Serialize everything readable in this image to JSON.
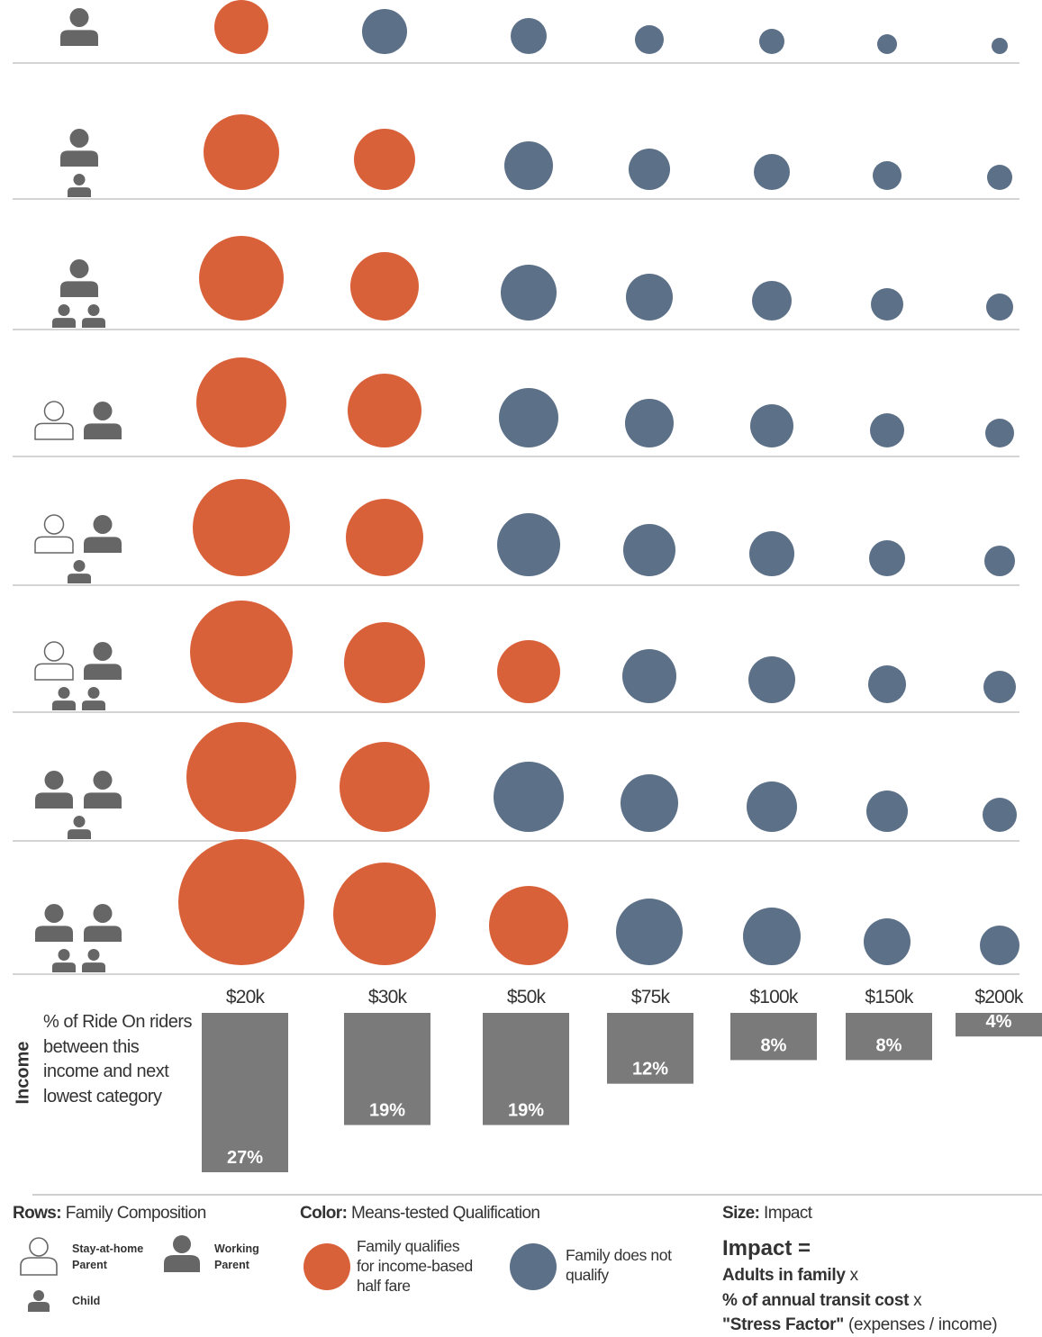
{
  "chart_data": {
    "type": "bubble-matrix",
    "columns": [
      "$20k",
      "$30k",
      "$50k",
      "$75k",
      "$100k",
      "$150k",
      "$200k"
    ],
    "rows": [
      {
        "composition": {
          "stay_at_home": 0,
          "working": 1,
          "children": 0
        },
        "impact": [
          30,
          25,
          20,
          16,
          14,
          11,
          9
        ],
        "qualifies": [
          true,
          false,
          false,
          false,
          false,
          false,
          false
        ]
      },
      {
        "composition": {
          "stay_at_home": 0,
          "working": 1,
          "children": 1
        },
        "impact": [
          42,
          34,
          27,
          23,
          20,
          16,
          14
        ],
        "qualifies": [
          true,
          true,
          false,
          false,
          false,
          false,
          false
        ]
      },
      {
        "composition": {
          "stay_at_home": 0,
          "working": 1,
          "children": 2
        },
        "impact": [
          47,
          38,
          31,
          26,
          22,
          18,
          15
        ],
        "qualifies": [
          true,
          true,
          false,
          false,
          false,
          false,
          false
        ]
      },
      {
        "composition": {
          "stay_at_home": 1,
          "working": 1,
          "children": 0
        },
        "impact": [
          50,
          41,
          33,
          27,
          24,
          19,
          16
        ],
        "qualifies": [
          true,
          true,
          false,
          false,
          false,
          false,
          false
        ]
      },
      {
        "composition": {
          "stay_at_home": 1,
          "working": 1,
          "children": 1
        },
        "impact": [
          54,
          43,
          35,
          29,
          25,
          20,
          17
        ],
        "qualifies": [
          true,
          true,
          false,
          false,
          false,
          false,
          false
        ]
      },
      {
        "composition": {
          "stay_at_home": 1,
          "working": 1,
          "children": 2
        },
        "impact": [
          57,
          45,
          35,
          30,
          26,
          21,
          18
        ],
        "qualifies": [
          true,
          true,
          true,
          false,
          false,
          false,
          false
        ]
      },
      {
        "composition": {
          "stay_at_home": 0,
          "working": 2,
          "children": 1
        },
        "impact": [
          61,
          50,
          39,
          32,
          28,
          23,
          19
        ],
        "qualifies": [
          true,
          true,
          false,
          false,
          false,
          false,
          false
        ]
      },
      {
        "composition": {
          "stay_at_home": 0,
          "working": 2,
          "children": 2
        },
        "impact": [
          70,
          57,
          44,
          37,
          32,
          26,
          22
        ],
        "qualifies": [
          true,
          true,
          true,
          false,
          false,
          false,
          false
        ]
      }
    ],
    "rider_share": {
      "values": [
        27,
        19,
        19,
        12,
        8,
        8,
        4
      ],
      "labels": [
        "27%",
        "19%",
        "19%",
        "12%",
        "8%",
        "8%",
        "4%"
      ]
    },
    "colors": {
      "qualifies": "#d9613a",
      "not_qualifies": "#5c7088",
      "bar": "#7a7a7a",
      "icon": "#666666",
      "line": "#bbbbbb"
    }
  },
  "axis": {
    "income_label": "Income",
    "bar_description": "% of Ride On riders between this income and next lowest category"
  },
  "legend": {
    "rows_key": "Rows:",
    "rows_value": "Family Composition",
    "stay_at_home_label_1": "Stay-at-home",
    "stay_at_home_label_2": "Parent",
    "working_label_1": "Working",
    "working_label_2": "Parent",
    "child_label": "Child",
    "color_key": "Color:",
    "color_value": "Means-tested Qualification",
    "qualifies_1": "Family qualifies",
    "qualifies_2": "for income-based",
    "qualifies_3": "half fare",
    "not_qualifies_1": "Family does not",
    "not_qualifies_2": "qualify",
    "size_key": "Size:",
    "size_value": "Impact",
    "impact_head": "Impact =",
    "impact_line1": "Adults in family",
    "impact_line2": "% of annual transit cost",
    "impact_line3": "\"Stress Factor\"",
    "impact_line3_paren": "(expenses / income)",
    "times": "x"
  }
}
